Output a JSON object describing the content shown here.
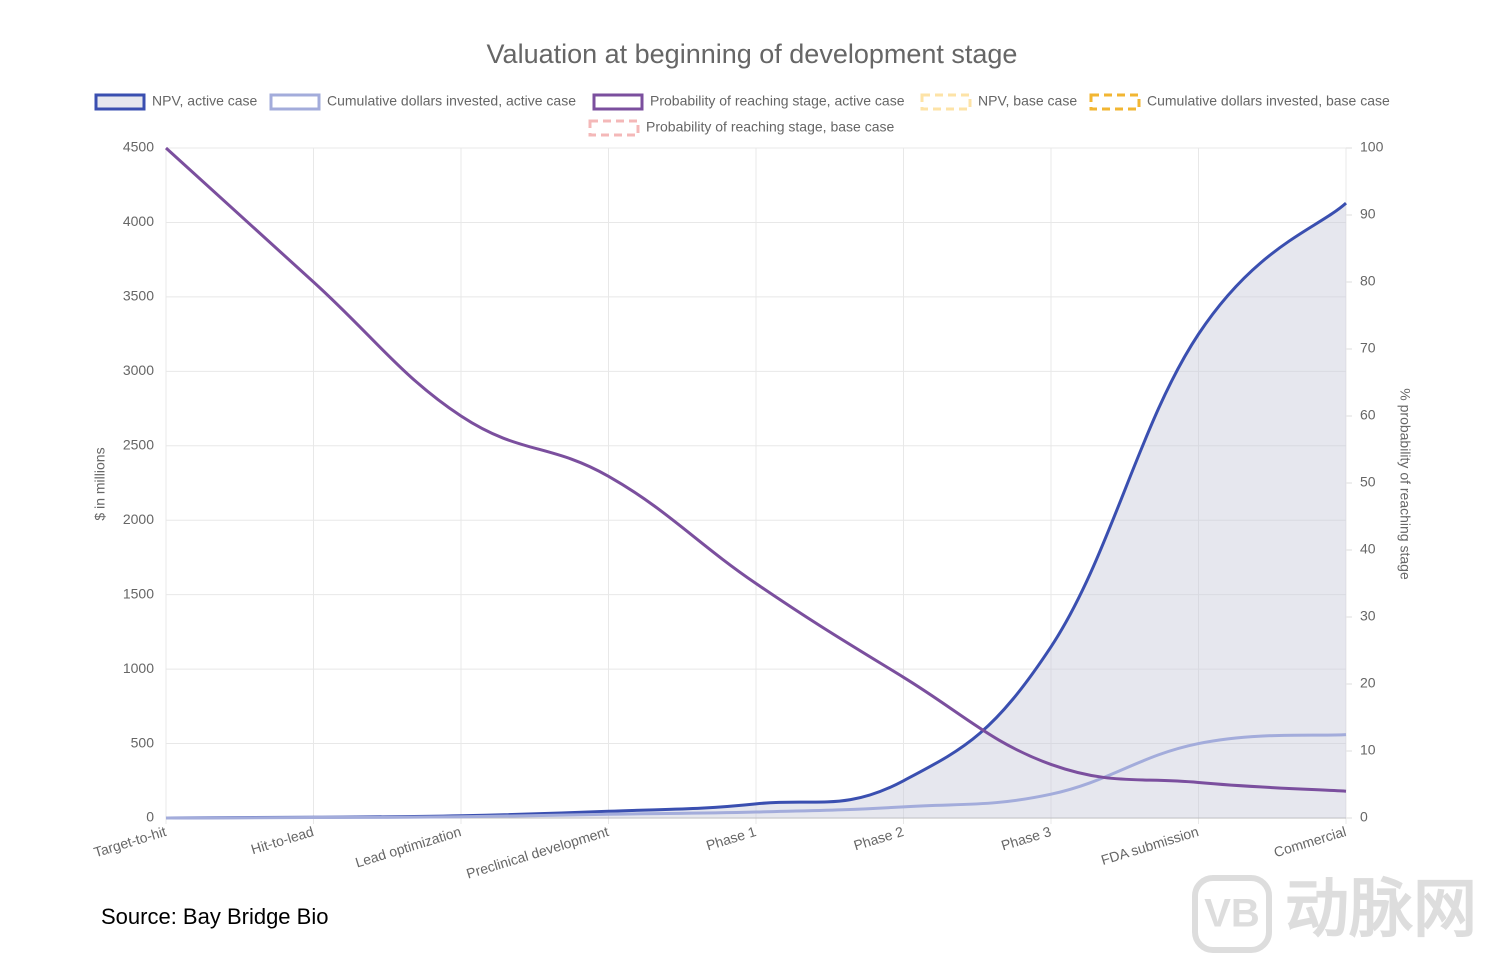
{
  "chart_data": {
    "type": "line",
    "title": "Valuation at beginning of development stage",
    "ylabel": "$ in millions",
    "y2label": "% probability of reaching stage",
    "categories": [
      "Target-to-hit",
      "Hit-to-lead",
      "Lead optimization",
      "Preclinical development",
      "Phase 1",
      "Phase 2",
      "Phase 3",
      "FDA submission",
      "Commercial"
    ],
    "series": [
      {
        "name": "NPV, active case",
        "color": "#3a4fb0",
        "fill": "rgba(200,202,218,0.45)",
        "values": [
          0,
          5,
          15,
          45,
          95,
          250,
          1150,
          3250,
          4130
        ]
      },
      {
        "name": "Cumulative dollars invested, active case",
        "color": "#a3acdb",
        "values": [
          0,
          3,
          8,
          25,
          40,
          75,
          160,
          500,
          560
        ]
      },
      {
        "name": "Probability of reaching stage, active case",
        "color": "#7b4f9e",
        "axis": "y2",
        "values": [
          100,
          80,
          60,
          51,
          35,
          21,
          8,
          5.3,
          4
        ]
      },
      {
        "name": "NPV, base case",
        "color": "#fde3a7",
        "dashed": true,
        "values": [
          null,
          null,
          null,
          null,
          null,
          null,
          null,
          null,
          null
        ]
      },
      {
        "name": "Cumulative dollars invested, base case",
        "color": "#f2b632",
        "dashed": true,
        "values": [
          null,
          null,
          null,
          null,
          null,
          null,
          null,
          null,
          null
        ]
      },
      {
        "name": "Probability of reaching stage, base case",
        "color": "#f4b8b8",
        "dashed": true,
        "axis": "y2",
        "values": [
          null,
          null,
          null,
          null,
          null,
          null,
          null,
          null,
          null
        ]
      }
    ],
    "ylim": [
      0,
      4500
    ],
    "yticks": [
      0,
      500,
      1000,
      1500,
      2000,
      2500,
      3000,
      3500,
      4000,
      4500
    ],
    "y2lim": [
      0,
      100
    ],
    "y2ticks": [
      0,
      10,
      20,
      30,
      40,
      50,
      60,
      70,
      80,
      90,
      100
    ],
    "grid": true
  },
  "source": "Source: Bay Bridge Bio",
  "watermark": "动脉网",
  "watermark_logo": "VB"
}
